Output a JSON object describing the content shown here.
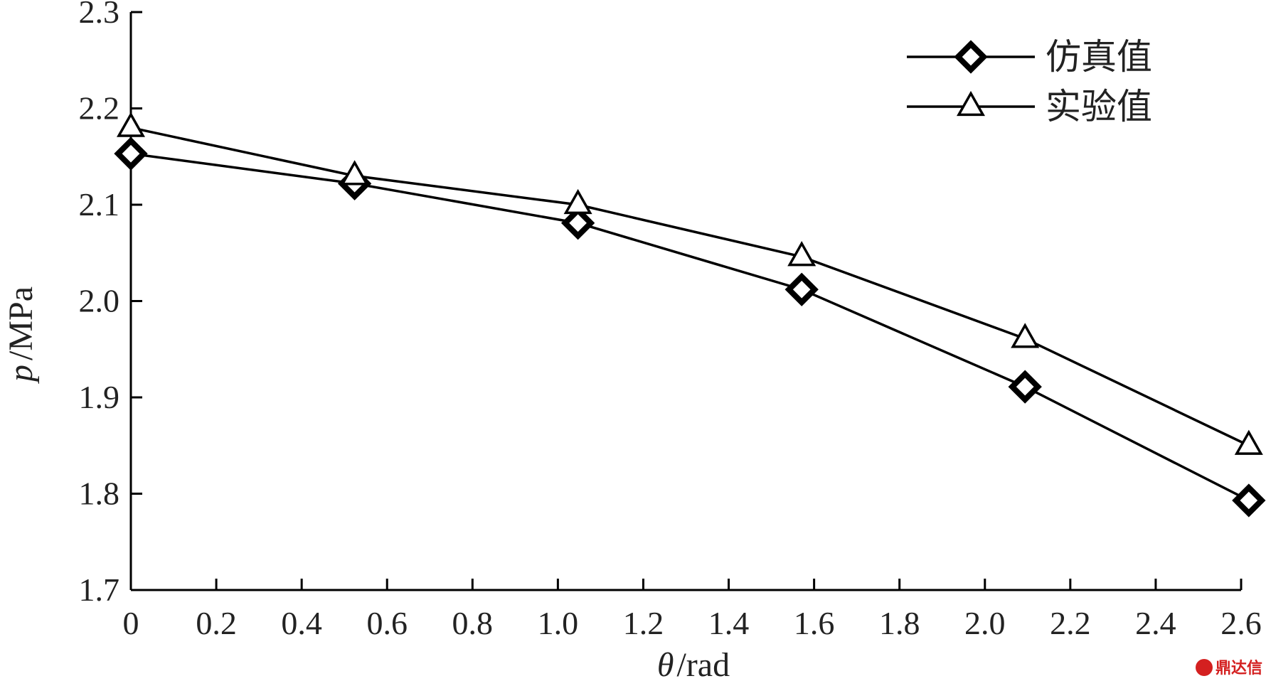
{
  "chart_data": {
    "type": "line",
    "xlabel": {
      "symbol": "θ",
      "unit": "/rad"
    },
    "ylabel": {
      "symbol": "p",
      "unit": "/MPa"
    },
    "xlim": [
      0,
      2.6
    ],
    "ylim": [
      1.7,
      2.3
    ],
    "x_ticks": [
      "0",
      "0.2",
      "0.4",
      "0.6",
      "0.8",
      "1.0",
      "1.2",
      "1.4",
      "1.6",
      "1.8",
      "2.0",
      "2.2",
      "2.4",
      "2.6"
    ],
    "y_ticks": [
      "1.7",
      "1.8",
      "1.9",
      "2.0",
      "2.1",
      "2.2",
      "2.3"
    ],
    "x": [
      0,
      0.524,
      1.047,
      1.571,
      2.094,
      2.618
    ],
    "series": [
      {
        "name": "仿真值",
        "marker": "diamond",
        "values": [
          2.153,
          2.122,
          2.081,
          2.012,
          1.911,
          1.793
        ]
      },
      {
        "name": "实验值",
        "marker": "triangle",
        "values": [
          2.18,
          2.13,
          2.1,
          2.046,
          1.961,
          1.85
        ]
      }
    ],
    "legend": "top-right",
    "grid": false
  },
  "watermark": {
    "text": "鼎达信",
    "logo": "seal-icon"
  }
}
